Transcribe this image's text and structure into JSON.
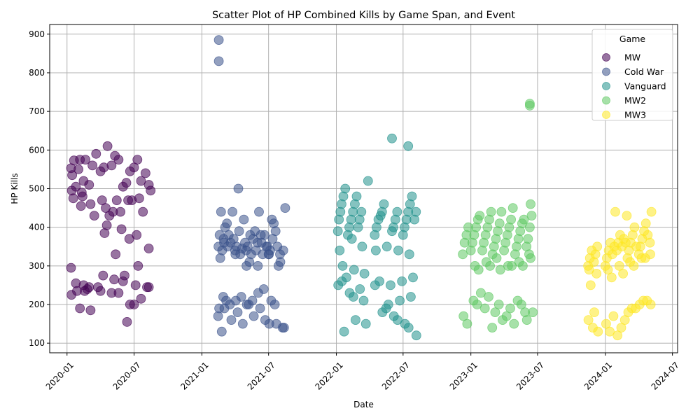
{
  "chart_data": {
    "type": "scatter",
    "title": "Scatter Plot of HP Combined Kills by Game Span, and Event",
    "xlabel": "Date",
    "ylabel": "HP Kills",
    "xlim": [
      "2019-11-15",
      "2024-07-15"
    ],
    "ylim": [
      75,
      925
    ],
    "x_ticks": [
      "2020-01",
      "2020-07",
      "2021-01",
      "2021-07",
      "2022-01",
      "2022-07",
      "2023-01",
      "2023-07",
      "2024-01",
      "2024-07"
    ],
    "y_ticks": [
      100,
      200,
      300,
      400,
      500,
      600,
      700,
      800,
      900
    ],
    "grid": true,
    "legend": {
      "title": "Game",
      "placement": "top-right"
    },
    "series": [
      {
        "name": "MW",
        "color": "#440154",
        "x": [
          "2020-01-12",
          "2020-01-15",
          "2020-01-20",
          "2020-01-25",
          "2020-02-01",
          "2020-02-05",
          "2020-02-10",
          "2020-02-15",
          "2020-02-20",
          "2020-03-01",
          "2020-03-10",
          "2020-03-20",
          "2020-04-01",
          "2020-04-10",
          "2020-04-20",
          "2020-05-01",
          "2020-05-10",
          "2020-05-20",
          "2020-06-01",
          "2020-06-10",
          "2020-06-20",
          "2020-07-01",
          "2020-07-10",
          "2020-07-20",
          "2020-08-01",
          "2020-08-10",
          "2020-01-18",
          "2020-02-12",
          "2020-03-05",
          "2020-04-15",
          "2020-05-15",
          "2020-06-15",
          "2020-07-15",
          "2020-08-15",
          "2020-01-14",
          "2020-02-08",
          "2020-03-15",
          "2020-04-25",
          "2020-05-25",
          "2020-06-25",
          "2020-07-25",
          "2020-04-05",
          "2020-05-05",
          "2020-01-13",
          "2020-01-28",
          "2020-02-18",
          "2020-03-25",
          "2020-04-08",
          "2020-05-08",
          "2020-06-05",
          "2020-07-05",
          "2020-08-05",
          "2020-04-18",
          "2020-05-28",
          "2020-06-18",
          "2020-07-08",
          "2020-08-10",
          "2020-01-12",
          "2020-01-25",
          "2020-02-05",
          "2020-02-15",
          "2020-03-01",
          "2020-04-01",
          "2020-05-01",
          "2020-05-20",
          "2020-06-01",
          "2020-06-20",
          "2020-07-01",
          "2020-07-20",
          "2020-08-10",
          "2020-04-12",
          "2020-05-12",
          "2020-03-05",
          "2020-02-25",
          "2020-06-12",
          "2020-07-12"
        ],
        "y": [
          553,
          535,
          573,
          505,
          550,
          575,
          490,
          520,
          575,
          510,
          560,
          590,
          545,
          555,
          610,
          560,
          585,
          575,
          505,
          515,
          545,
          555,
          575,
          520,
          540,
          510,
          475,
          480,
          460,
          450,
          470,
          470,
          475,
          495,
          495,
          455,
          430,
          430,
          440,
          470,
          440,
          470,
          440,
          225,
          235,
          235,
          245,
          275,
          265,
          275,
          250,
          245,
          405,
          395,
          370,
          380,
          345,
          295,
          255,
          190,
          250,
          245,
          235,
          230,
          230,
          260,
          200,
          200,
          215,
          245,
          385,
          330,
          185,
          240,
          155,
          300
        ],
        "x_display": [],
        "y_display": []
      },
      {
        "name": "Cold War",
        "color": "#3b528b",
        "x": [
          "2021-02-15",
          "2021-02-18",
          "2021-02-22",
          "2021-03-01",
          "2021-03-05",
          "2021-03-10",
          "2021-03-15",
          "2021-03-20",
          "2021-03-25",
          "2021-04-01",
          "2021-04-05",
          "2021-04-10",
          "2021-04-15",
          "2021-04-20",
          "2021-04-25",
          "2021-05-01",
          "2021-05-05",
          "2021-05-10",
          "2021-05-15",
          "2021-05-20",
          "2021-05-25",
          "2021-06-01",
          "2021-06-05",
          "2021-06-10",
          "2021-06-15",
          "2021-06-20",
          "2021-06-25",
          "2021-07-01",
          "2021-07-05",
          "2021-07-10",
          "2021-07-15",
          "2021-07-20",
          "2021-07-25",
          "2021-08-01",
          "2021-08-10",
          "2021-08-15",
          "2021-03-02",
          "2021-04-02",
          "2021-05-02",
          "2021-06-02",
          "2021-07-02",
          "2021-08-02",
          "2021-02-20",
          "2021-03-12",
          "2021-04-12",
          "2021-05-12",
          "2021-06-12",
          "2021-07-12",
          "2021-02-25",
          "2021-03-28",
          "2021-04-28",
          "2021-05-28",
          "2021-06-28",
          "2021-07-28",
          "2021-02-14",
          "2021-02-17",
          "2021-02-28",
          "2021-03-08",
          "2021-03-18",
          "2021-04-08",
          "2021-04-18",
          "2021-05-08",
          "2021-05-18",
          "2021-06-08",
          "2021-06-18",
          "2021-07-08",
          "2021-07-18",
          "2021-08-08",
          "2021-02-24",
          "2021-03-22",
          "2021-04-22",
          "2021-05-22",
          "2021-06-22",
          "2021-07-22",
          "2021-08-12",
          "2021-03-03",
          "2021-04-03",
          "2021-05-03",
          "2021-06-03",
          "2021-07-03",
          "2021-02-16",
          "2021-02-16"
        ],
        "y": [
          350,
          380,
          440,
          370,
          400,
          410,
          380,
          360,
          440,
          340,
          350,
          500,
          330,
          345,
          420,
          340,
          350,
          310,
          330,
          370,
          390,
          360,
          440,
          380,
          330,
          380,
          350,
          330,
          340,
          420,
          410,
          390,
          350,
          330,
          340,
          450,
          360,
          330,
          300,
          300,
          330,
          310,
          320,
          350,
          390,
          380,
          360,
          370,
          340,
          370,
          360,
          340,
          350,
          300,
          170,
          190,
          220,
          210,
          200,
          180,
          220,
          200,
          210,
          190,
          240,
          210,
          200,
          140,
          130,
          160,
          150,
          170,
          160,
          150,
          140,
          190,
          210,
          200,
          230,
          150,
          885,
          830
        ],
        "x_display": [],
        "y_display": []
      },
      {
        "name": "Vanguard",
        "color": "#21918c",
        "x": [
          "2022-01-05",
          "2022-01-08",
          "2022-01-12",
          "2022-01-15",
          "2022-01-20",
          "2022-01-25",
          "2022-02-01",
          "2022-02-05",
          "2022-02-10",
          "2022-02-15",
          "2022-02-20",
          "2022-02-25",
          "2022-03-01",
          "2022-03-05",
          "2022-03-10",
          "2022-04-15",
          "2022-04-20",
          "2022-04-25",
          "2022-05-01",
          "2022-05-05",
          "2022-05-10",
          "2022-06-01",
          "2022-06-05",
          "2022-06-10",
          "2022-06-15",
          "2022-07-01",
          "2022-07-05",
          "2022-07-10",
          "2022-07-15",
          "2022-07-20",
          "2022-07-25",
          "2022-08-01",
          "2022-08-05",
          "2022-01-10",
          "2022-02-12",
          "2022-03-12",
          "2022-04-18",
          "2022-05-18",
          "2022-06-18",
          "2022-07-18",
          "2022-01-18",
          "2022-02-18",
          "2022-03-18",
          "2022-04-28",
          "2022-05-28",
          "2022-06-28",
          "2022-07-28",
          "2022-01-06",
          "2022-01-16",
          "2022-02-06",
          "2022-02-16",
          "2022-03-06",
          "2022-03-16",
          "2022-04-16",
          "2022-05-06",
          "2022-05-16",
          "2022-06-06",
          "2022-06-16",
          "2022-07-06",
          "2022-07-16",
          "2022-08-06",
          "2022-01-22",
          "2022-02-22",
          "2022-03-22",
          "2022-05-22",
          "2022-06-22",
          "2022-07-22",
          "2022-06-01",
          "2022-07-15",
          "2022-01-28",
          "2022-03-28"
        ],
        "y": [
          390,
          420,
          440,
          460,
          480,
          500,
          380,
          400,
          420,
          440,
          460,
          480,
          400,
          420,
          440,
          380,
          400,
          420,
          430,
          440,
          460,
          390,
          400,
          420,
          440,
          380,
          400,
          420,
          440,
          460,
          480,
          420,
          440,
          340,
          370,
          350,
          340,
          350,
          340,
          330,
          300,
          290,
          280,
          260,
          250,
          260,
          270,
          250,
          260,
          230,
          220,
          240,
          210,
          250,
          180,
          190,
          170,
          160,
          150,
          140,
          120,
          130,
          160,
          150,
          200,
          210,
          220,
          630,
          610,
          270,
          520
        ],
        "x_display": [],
        "y_display": []
      },
      {
        "name": "MW2",
        "color": "#5ec962",
        "x": [
          "2022-12-10",
          "2022-12-15",
          "2022-12-20",
          "2022-12-25",
          "2023-01-01",
          "2023-01-05",
          "2023-01-10",
          "2023-01-15",
          "2023-01-20",
          "2023-01-25",
          "2023-02-01",
          "2023-02-05",
          "2023-02-10",
          "2023-02-15",
          "2023-02-20",
          "2023-02-25",
          "2023-03-01",
          "2023-03-05",
          "2023-03-10",
          "2023-03-15",
          "2023-03-20",
          "2023-03-25",
          "2023-04-01",
          "2023-04-05",
          "2023-04-10",
          "2023-04-15",
          "2023-04-20",
          "2023-04-25",
          "2023-05-01",
          "2023-05-05",
          "2023-05-10",
          "2023-05-15",
          "2023-05-20",
          "2023-05-25",
          "2023-06-01",
          "2023-06-05",
          "2023-06-10",
          "2023-06-15",
          "2023-01-12",
          "2023-02-12",
          "2023-03-12",
          "2023-04-12",
          "2023-05-12",
          "2023-06-12",
          "2023-01-22",
          "2023-02-22",
          "2023-03-22",
          "2023-04-22",
          "2023-05-22",
          "2023-06-08",
          "2023-01-08",
          "2023-01-18",
          "2023-02-08",
          "2023-02-18",
          "2023-03-08",
          "2023-03-18",
          "2023-04-08",
          "2023-04-18",
          "2023-05-08",
          "2023-05-18",
          "2023-06-02",
          "2022-12-12",
          "2022-12-22",
          "2023-01-28",
          "2023-02-28",
          "2023-03-28",
          "2023-04-28",
          "2023-05-28",
          "2023-06-18",
          "2023-06-10",
          "2023-06-10",
          "2023-06-12"
        ],
        "y": [
          330,
          360,
          380,
          400,
          340,
          360,
          380,
          400,
          420,
          430,
          340,
          360,
          380,
          400,
          420,
          440,
          330,
          350,
          370,
          390,
          410,
          440,
          340,
          360,
          380,
          400,
          420,
          450,
          330,
          350,
          370,
          390,
          410,
          420,
          350,
          370,
          400,
          430,
          300,
          310,
          320,
          300,
          310,
          320,
          290,
          300,
          290,
          300,
          300,
          330,
          210,
          200,
          190,
          220,
          180,
          200,
          170,
          190,
          210,
          200,
          160,
          170,
          150,
          230,
          140,
          160,
          150,
          180,
          180,
          720,
          715,
          460
        ],
        "x_display": [],
        "y_display": []
      },
      {
        "name": "MW3",
        "color": "#fde725",
        "x": [
          "2023-11-15",
          "2023-11-20",
          "2023-11-25",
          "2023-12-01",
          "2023-12-05",
          "2023-12-10",
          "2024-01-01",
          "2024-01-05",
          "2024-01-10",
          "2024-01-15",
          "2024-01-20",
          "2024-01-25",
          "2024-02-01",
          "2024-02-05",
          "2024-02-10",
          "2024-02-15",
          "2024-02-20",
          "2024-02-25",
          "2024-03-01",
          "2024-03-05",
          "2024-03-10",
          "2024-03-15",
          "2024-03-20",
          "2024-03-25",
          "2024-04-01",
          "2024-04-05",
          "2024-04-10",
          "2024-04-15",
          "2024-04-20",
          "2024-04-25",
          "2024-05-01",
          "2024-05-05",
          "2023-11-18",
          "2023-12-08",
          "2024-01-08",
          "2024-02-08",
          "2024-03-08",
          "2024-04-08",
          "2024-05-02",
          "2023-11-22",
          "2024-01-18",
          "2024-02-18",
          "2024-03-18",
          "2024-04-18",
          "2023-11-16",
          "2023-11-28",
          "2024-01-03",
          "2024-01-13",
          "2024-02-03",
          "2024-02-13",
          "2024-03-03",
          "2024-03-13",
          "2024-04-03",
          "2024-04-13",
          "2024-05-03",
          "2023-12-02",
          "2024-01-23",
          "2024-02-23",
          "2024-03-23",
          "2024-04-23",
          "2024-01-28",
          "2024-02-28",
          "2023-12-12"
        ],
        "y": [
          300,
          320,
          340,
          310,
          330,
          350,
          300,
          320,
          340,
          360,
          330,
          350,
          340,
          360,
          380,
          350,
          370,
          360,
          320,
          340,
          360,
          380,
          400,
          350,
          330,
          350,
          370,
          390,
          410,
          380,
          360,
          440,
          290,
          280,
          290,
          300,
          310,
          320,
          330,
          250,
          270,
          280,
          300,
          320,
          160,
          140,
          150,
          130,
          120,
          140,
          180,
          190,
          200,
          210,
          200,
          180,
          170,
          160,
          190,
          210,
          440,
          430,
          130
        ],
        "x_display": [],
        "y_display": []
      }
    ]
  }
}
